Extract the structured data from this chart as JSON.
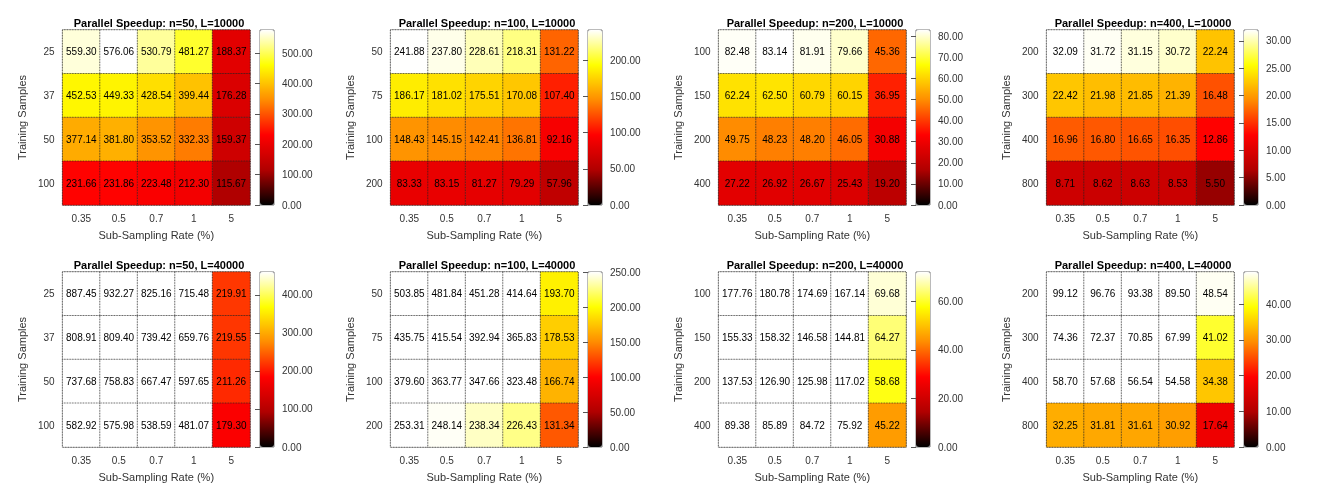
{
  "chart_data": [
    {
      "type": "heatmap",
      "title": "Parallel Speedup: n=50, L=10000",
      "xlabel": "Sub-Sampling Rate (%)",
      "ylabel": "Training Samples",
      "categories": [
        "0.35",
        "0.5",
        "0.7",
        "1",
        "5"
      ],
      "y_categories": [
        "25",
        "37",
        "50",
        "100"
      ],
      "cells": [
        [
          559.3,
          576.06,
          530.79,
          481.27,
          188.37
        ],
        [
          452.53,
          449.33,
          428.54,
          399.44,
          176.28
        ],
        [
          377.14,
          381.8,
          353.52,
          332.33,
          159.37
        ],
        [
          231.66,
          231.86,
          223.48,
          212.3,
          115.67
        ]
      ],
      "cell_labels": [
        [
          "559.30",
          "576.06",
          "530.79",
          "481.27",
          "188.37"
        ],
        [
          "452.53",
          "449.33",
          "428.54",
          "399.44",
          "176.28"
        ],
        [
          "377.14",
          "381.80",
          "353.52",
          "332.33",
          "159.37"
        ],
        [
          "231.66",
          "231.86",
          "223.48",
          "212.30",
          "115.67"
        ]
      ],
      "clim": [
        0,
        576
      ],
      "cticks": [
        {
          "value": 0,
          "label": "0.00"
        },
        {
          "value": 100,
          "label": "100.00"
        },
        {
          "value": 200,
          "label": "200.00"
        },
        {
          "value": 300,
          "label": "300.00"
        },
        {
          "value": 400,
          "label": "400.00"
        },
        {
          "value": 500,
          "label": "500.00"
        }
      ],
      "data_labels": true
    },
    {
      "type": "heatmap",
      "title": "Parallel Speedup: n=100, L=10000",
      "xlabel": "Sub-Sampling Rate (%)",
      "ylabel": "Training Samples",
      "categories": [
        "0.35",
        "0.5",
        "0.7",
        "1",
        "5"
      ],
      "y_categories": [
        "50",
        "75",
        "100",
        "200"
      ],
      "cells": [
        [
          241.88,
          237.8,
          228.61,
          218.31,
          131.22
        ],
        [
          186.17,
          181.02,
          175.51,
          170.08,
          107.4
        ],
        [
          148.43,
          145.15,
          142.41,
          136.81,
          92.16
        ],
        [
          83.33,
          83.15,
          81.27,
          79.29,
          57.96
        ]
      ],
      "cell_labels": [
        [
          "241.88",
          "237.80",
          "228.61",
          "218.31",
          "131.22"
        ],
        [
          "186.17",
          "181.02",
          "175.51",
          "170.08",
          "107.40"
        ],
        [
          "148.43",
          "145.15",
          "142.41",
          "136.81",
          "92.16"
        ],
        [
          "83.33",
          "83.15",
          "81.27",
          "79.29",
          "57.96"
        ]
      ],
      "clim": [
        0,
        242
      ],
      "cticks": [
        {
          "value": 0,
          "label": "0.00"
        },
        {
          "value": 50,
          "label": "50.00"
        },
        {
          "value": 100,
          "label": "100.00"
        },
        {
          "value": 150,
          "label": "150.00"
        },
        {
          "value": 200,
          "label": "200.00"
        }
      ],
      "data_labels": true
    },
    {
      "type": "heatmap",
      "title": "Parallel Speedup: n=200, L=10000",
      "xlabel": "Sub-Sampling Rate (%)",
      "ylabel": "Training Samples",
      "categories": [
        "0.35",
        "0.5",
        "0.7",
        "1",
        "5"
      ],
      "y_categories": [
        "100",
        "150",
        "200",
        "400"
      ],
      "cells": [
        [
          82.48,
          83.14,
          81.91,
          79.66,
          45.36
        ],
        [
          62.24,
          62.5,
          60.79,
          60.15,
          36.95
        ],
        [
          49.75,
          48.23,
          48.2,
          46.05,
          30.88
        ],
        [
          27.22,
          26.92,
          26.67,
          25.43,
          19.2
        ]
      ],
      "cell_labels": [
        [
          "82.48",
          "83.14",
          "81.91",
          "79.66",
          "45.36"
        ],
        [
          "62.24",
          "62.50",
          "60.79",
          "60.15",
          "36.95"
        ],
        [
          "49.75",
          "48.23",
          "48.20",
          "46.05",
          "30.88"
        ],
        [
          "27.22",
          "26.92",
          "26.67",
          "25.43",
          "19.20"
        ]
      ],
      "clim": [
        0,
        83
      ],
      "cticks": [
        {
          "value": 0,
          "label": "0.00"
        },
        {
          "value": 10,
          "label": "10.00"
        },
        {
          "value": 20,
          "label": "20.00"
        },
        {
          "value": 30,
          "label": "30.00"
        },
        {
          "value": 40,
          "label": "40.00"
        },
        {
          "value": 50,
          "label": "50.00"
        },
        {
          "value": 60,
          "label": "60.00"
        },
        {
          "value": 70,
          "label": "70.00"
        },
        {
          "value": 80,
          "label": "80.00"
        }
      ],
      "data_labels": true
    },
    {
      "type": "heatmap",
      "title": "Parallel Speedup: n=400, L=10000",
      "xlabel": "Sub-Sampling Rate (%)",
      "ylabel": "Training Samples",
      "categories": [
        "0.35",
        "0.5",
        "0.7",
        "1",
        "5"
      ],
      "y_categories": [
        "200",
        "300",
        "400",
        "800"
      ],
      "cells": [
        [
          32.09,
          31.72,
          31.15,
          30.72,
          22.24
        ],
        [
          22.42,
          21.98,
          21.85,
          21.39,
          16.48
        ],
        [
          16.96,
          16.8,
          16.65,
          16.35,
          12.86
        ],
        [
          8.71,
          8.62,
          8.63,
          8.53,
          5.5
        ]
      ],
      "cell_labels": [
        [
          "32.09",
          "31.72",
          "31.15",
          "30.72",
          "22.24"
        ],
        [
          "22.42",
          "21.98",
          "21.85",
          "21.39",
          "16.48"
        ],
        [
          "16.96",
          "16.80",
          "16.65",
          "16.35",
          "12.86"
        ],
        [
          "8.71",
          "8.62",
          "8.63",
          "8.53",
          "5.50"
        ]
      ],
      "clim": [
        0,
        32
      ],
      "cticks": [
        {
          "value": 0,
          "label": "0.00"
        },
        {
          "value": 5,
          "label": "5.00"
        },
        {
          "value": 10,
          "label": "10.00"
        },
        {
          "value": 15,
          "label": "15.00"
        },
        {
          "value": 20,
          "label": "20.00"
        },
        {
          "value": 25,
          "label": "25.00"
        },
        {
          "value": 30,
          "label": "30.00"
        }
      ],
      "data_labels": true
    },
    {
      "type": "heatmap",
      "title": "Parallel Speedup: n=50, L=40000",
      "xlabel": "Sub-Sampling Rate (%)",
      "ylabel": "Training Samples",
      "categories": [
        "0.35",
        "0.5",
        "0.7",
        "1",
        "5"
      ],
      "y_categories": [
        "25",
        "37",
        "50",
        "100"
      ],
      "cells": [
        [
          887.45,
          932.27,
          825.16,
          715.48,
          219.91
        ],
        [
          808.91,
          809.4,
          739.42,
          659.76,
          219.55
        ],
        [
          737.68,
          758.83,
          667.47,
          597.65,
          211.26
        ],
        [
          582.92,
          575.98,
          538.59,
          481.07,
          179.3
        ]
      ],
      "cell_labels": [
        [
          "887.45",
          "932.27",
          "825.16",
          "715.48",
          "219.91"
        ],
        [
          "808.91",
          "809.40",
          "739.42",
          "659.76",
          "219.55"
        ],
        [
          "737.68",
          "758.83",
          "667.47",
          "597.65",
          "211.26"
        ],
        [
          "582.92",
          "575.98",
          "538.59",
          "481.07",
          "179.30"
        ]
      ],
      "clim": [
        0,
        460
      ],
      "cticks": [
        {
          "value": 0,
          "label": "0.00"
        },
        {
          "value": 100,
          "label": "100.00"
        },
        {
          "value": 200,
          "label": "200.00"
        },
        {
          "value": 300,
          "label": "300.00"
        },
        {
          "value": 400,
          "label": "400.00"
        }
      ],
      "data_labels": true
    },
    {
      "type": "heatmap",
      "title": "Parallel Speedup: n=100, L=40000",
      "xlabel": "Sub-Sampling Rate (%)",
      "ylabel": "Training Samples",
      "categories": [
        "0.35",
        "0.5",
        "0.7",
        "1",
        "5"
      ],
      "y_categories": [
        "50",
        "75",
        "100",
        "200"
      ],
      "cells": [
        [
          503.85,
          481.84,
          451.28,
          414.64,
          193.7
        ],
        [
          435.75,
          415.54,
          392.94,
          365.83,
          178.53
        ],
        [
          379.6,
          363.77,
          347.66,
          323.48,
          166.74
        ],
        [
          253.31,
          248.14,
          238.34,
          226.43,
          131.34
        ]
      ],
      "cell_labels": [
        [
          "503.85",
          "481.84",
          "451.28",
          "414.64",
          "193.70"
        ],
        [
          "435.75",
          "415.54",
          "392.94",
          "365.83",
          "178.53"
        ],
        [
          "379.60",
          "363.77",
          "347.66",
          "323.48",
          "166.74"
        ],
        [
          "253.31",
          "248.14",
          "238.34",
          "226.43",
          "131.34"
        ]
      ],
      "clim": [
        0,
        250
      ],
      "cticks": [
        {
          "value": 0,
          "label": "0.00"
        },
        {
          "value": 50,
          "label": "50.00"
        },
        {
          "value": 100,
          "label": "100.00"
        },
        {
          "value": 150,
          "label": "150.00"
        },
        {
          "value": 200,
          "label": "200.00"
        },
        {
          "value": 250,
          "label": "250.00"
        }
      ],
      "data_labels": true
    },
    {
      "type": "heatmap",
      "title": "Parallel Speedup: n=200, L=40000",
      "xlabel": "Sub-Sampling Rate (%)",
      "ylabel": "Training Samples",
      "categories": [
        "0.35",
        "0.5",
        "0.7",
        "1",
        "5"
      ],
      "y_categories": [
        "100",
        "150",
        "200",
        "400"
      ],
      "cells": [
        [
          177.76,
          180.78,
          174.69,
          167.14,
          69.68
        ],
        [
          155.33,
          158.32,
          146.58,
          144.81,
          64.27
        ],
        [
          137.53,
          126.9,
          125.98,
          117.02,
          58.68
        ],
        [
          89.38,
          85.89,
          84.72,
          75.92,
          45.22
        ]
      ],
      "cell_labels": [
        [
          "177.76",
          "180.78",
          "174.69",
          "167.14",
          "69.68"
        ],
        [
          "155.33",
          "158.32",
          "146.58",
          "144.81",
          "64.27"
        ],
        [
          "137.53",
          "126.90",
          "125.98",
          "117.02",
          "58.68"
        ],
        [
          "89.38",
          "85.89",
          "84.72",
          "75.92",
          "45.22"
        ]
      ],
      "clim": [
        0,
        72
      ],
      "cticks": [
        {
          "value": 0,
          "label": "0.00"
        },
        {
          "value": 20,
          "label": "20.00"
        },
        {
          "value": 40,
          "label": "40.00"
        },
        {
          "value": 60,
          "label": "60.00"
        }
      ],
      "data_labels": true
    },
    {
      "type": "heatmap",
      "title": "Parallel Speedup: n=400, L=40000",
      "xlabel": "Sub-Sampling Rate (%)",
      "ylabel": "Training Samples",
      "categories": [
        "0.35",
        "0.5",
        "0.7",
        "1",
        "5"
      ],
      "y_categories": [
        "200",
        "300",
        "400",
        "800"
      ],
      "cells": [
        [
          99.12,
          96.76,
          93.38,
          89.5,
          48.54
        ],
        [
          74.36,
          72.37,
          70.85,
          67.99,
          41.02
        ],
        [
          58.7,
          57.68,
          56.54,
          54.58,
          34.38
        ],
        [
          32.25,
          31.81,
          31.61,
          30.92,
          17.64
        ]
      ],
      "cell_labels": [
        [
          "99.12",
          "96.76",
          "93.38",
          "89.50",
          "48.54"
        ],
        [
          "74.36",
          "72.37",
          "70.85",
          "67.99",
          "41.02"
        ],
        [
          "58.70",
          "57.68",
          "56.54",
          "54.58",
          "34.38"
        ],
        [
          "32.25",
          "31.81",
          "31.61",
          "30.92",
          "17.64"
        ]
      ],
      "clim": [
        0,
        49
      ],
      "cticks": [
        {
          "value": 0,
          "label": "0.00"
        },
        {
          "value": 10,
          "label": "10.00"
        },
        {
          "value": 20,
          "label": "20.00"
        },
        {
          "value": 30,
          "label": "30.00"
        },
        {
          "value": 40,
          "label": "40.00"
        }
      ],
      "data_labels": true
    }
  ]
}
